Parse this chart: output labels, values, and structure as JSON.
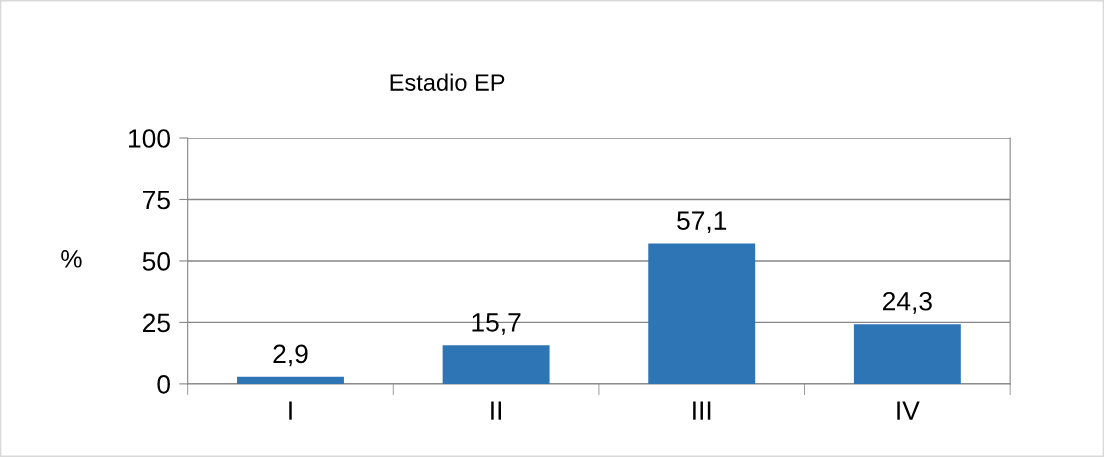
{
  "chart_data": {
    "type": "bar",
    "title": "Estadio EP",
    "ylabel": "%",
    "categories": [
      "I",
      "II",
      "III",
      "IV"
    ],
    "values": [
      2.9,
      15.7,
      57.1,
      24.3
    ],
    "value_labels": [
      "2,9",
      "15,7",
      "57,1",
      "24,3"
    ],
    "color": "#2e75b6",
    "ylim": [
      0,
      100
    ],
    "yticks": [
      0,
      25,
      50,
      75,
      100
    ],
    "grid": "y"
  }
}
